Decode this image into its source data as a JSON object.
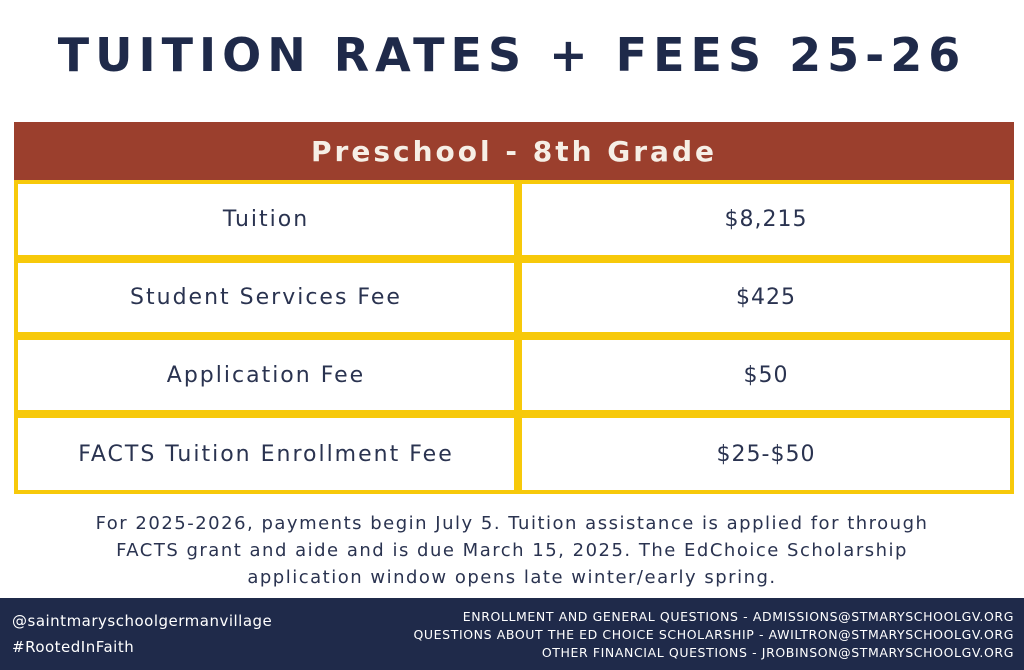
{
  "title": "TUITION RATES + FEES 25-26",
  "table": {
    "header": "Preschool - 8th Grade",
    "rows": [
      {
        "label": "Tuition",
        "value": "$8,215"
      },
      {
        "label": "Student Services Fee",
        "value": "$425"
      },
      {
        "label": "Application Fee",
        "value": "$50"
      },
      {
        "label": "FACTS Tuition Enrollment Fee",
        "value": "$25-$50"
      }
    ]
  },
  "note": {
    "line1": "For 2025-2026, payments begin July 5. Tuition assistance is applied for through",
    "line2": "FACTS grant and aide and is due March 15, 2025. The EdChoice Scholarship",
    "line3": "application window opens late winter/early spring."
  },
  "footer": {
    "social_handle": "@saintmaryschoolgermanvillage",
    "hashtag": "#RootedInFaith",
    "contact1": "ENROLLMENT AND GENERAL QUESTIONS - ADMISSIONS@STMARYSCHOOLGV.ORG",
    "contact2": "QUESTIONS ABOUT THE ED CHOICE SCHOLARSHIP - AWILTRON@STMARYSCHOOLGV.ORG",
    "contact3": "OTHER FINANCIAL QUESTIONS - JROBINSON@STMARYSCHOOLGV.ORG"
  },
  "colors": {
    "navy": "#1f2a4a",
    "header_red": "#9b3f2d",
    "border_yellow": "#f7c90a"
  }
}
